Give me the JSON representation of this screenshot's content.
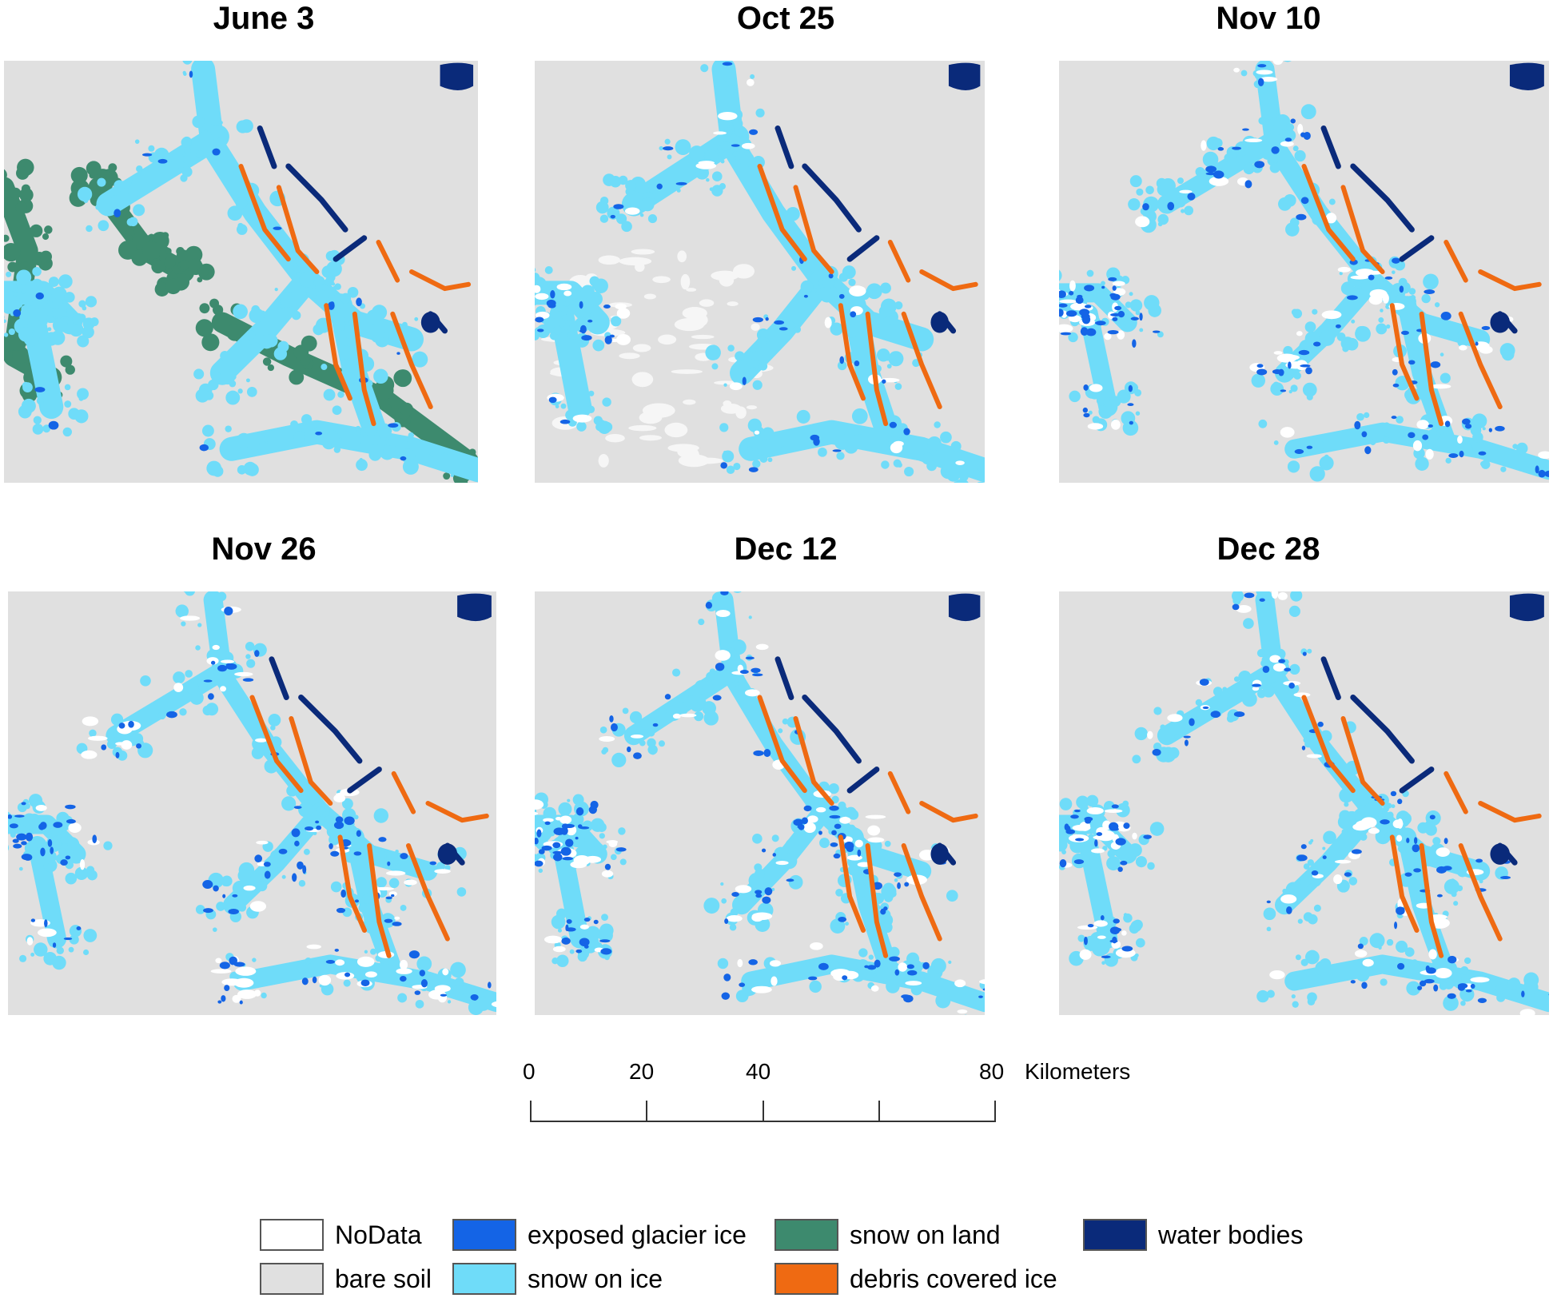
{
  "panels": [
    {
      "id": "june3",
      "title": "June 3"
    },
    {
      "id": "oct25",
      "title": "Oct 25"
    },
    {
      "id": "nov10",
      "title": "Nov 10"
    },
    {
      "id": "nov26",
      "title": "Nov 26"
    },
    {
      "id": "dec12",
      "title": "Dec 12"
    },
    {
      "id": "dec28",
      "title": "Dec 28"
    }
  ],
  "scale_bar": {
    "ticks": [
      "0",
      "20",
      "40",
      "80"
    ],
    "tick_values": [
      0,
      20,
      40,
      60,
      80
    ],
    "unit": "Kilometers"
  },
  "legend": {
    "items": [
      {
        "label": "NoData",
        "color": "#ffffff"
      },
      {
        "label": "bare soil",
        "color": "#e0e0e0"
      },
      {
        "label": "exposed glacier ice",
        "color": "#1464e6"
      },
      {
        "label": "snow on ice",
        "color": "#6fdcf9"
      },
      {
        "label": "snow on land",
        "color": "#3d8a6e"
      },
      {
        "label": "debris covered ice",
        "color": "#ef6a12"
      },
      {
        "label": "water bodies",
        "color": "#0a2a7a"
      }
    ]
  },
  "colors": {
    "nodata": "#ffffff",
    "bare_soil": "#e0e0e0",
    "exposed_glacier_ice": "#1464e6",
    "snow_on_ice": "#6fdcf9",
    "snow_on_land": "#3d8a6e",
    "debris_covered_ice": "#ef6a12",
    "water_bodies": "#0a2a7a"
  }
}
